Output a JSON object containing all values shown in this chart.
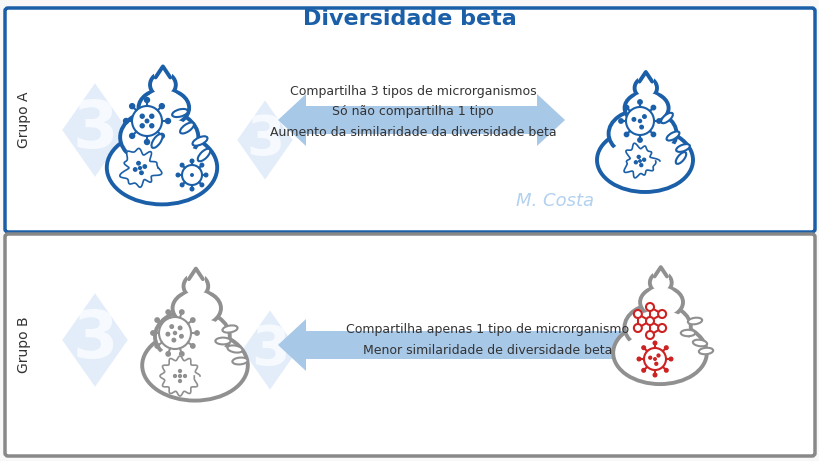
{
  "title": "Diversidade beta",
  "title_color": "#1a5fa8",
  "title_fontsize": 16,
  "bg_color": "#f8f8f8",
  "group_a_border_color": "#1a5fa8",
  "group_b_border_color": "#888888",
  "group_a_label": "Grupo A",
  "group_b_label": "Grupo B",
  "group_a_text": "Compartilha 3 tipos de microrganismos\nSó não compartilha 1 tipo\nAumento da similaridade da diversidade beta",
  "group_b_text": "Compartilha apenas 1 tipo de microrganismo\nMenor similaridade de diversidade beta",
  "arrow_color": "#a8c8e8",
  "microbe_blue": "#1a5fa8",
  "microbe_gray": "#909090",
  "microbe_red": "#cc2222",
  "watermark_color": "#c0d8f0",
  "label_fontsize": 10,
  "text_fontsize": 9,
  "watermark_fontsize": 75
}
